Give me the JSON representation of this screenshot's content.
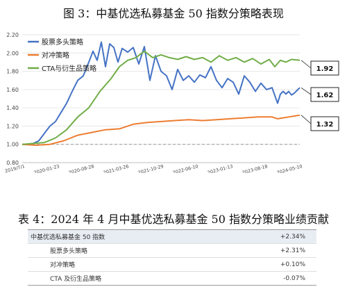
{
  "figure_title": "图 3：中基优选私募基金 50 指数分策略表现",
  "chart_data": {
    "type": "line",
    "ylim": [
      0.8,
      2.2
    ],
    "y_ticks": [
      "0.80",
      "1.00",
      "1.20",
      "1.40",
      "1.60",
      "1.80",
      "2.00",
      "2.20"
    ],
    "x_ticks": [
      "2019/7/1",
      "2020-01-23",
      "2020-08-28",
      "2021-03-26",
      "2021-10-29",
      "2022-06-10",
      "2023-01-13",
      "2023-08-18",
      "2024-05-10"
    ],
    "reference_line": 1.0,
    "legend_position": "top-left",
    "series": [
      {
        "name": "股票多头策略",
        "color": "#4472C4",
        "end_label": "1.62",
        "x": [
          0,
          2,
          4,
          6,
          8,
          10,
          12,
          14,
          16,
          18,
          20,
          22,
          24,
          25.5,
          27,
          28.5,
          30,
          31.5,
          33,
          34.5,
          36,
          38,
          40,
          42,
          44,
          46,
          48,
          50,
          52,
          54,
          56,
          58,
          60,
          62,
          64,
          66,
          68,
          70,
          72,
          74,
          76,
          78,
          80,
          82,
          84,
          86,
          88,
          90,
          92,
          93,
          94,
          95,
          96,
          97,
          98,
          100
        ],
        "values": [
          1.0,
          1.0,
          1.01,
          1.04,
          1.12,
          1.2,
          1.25,
          1.35,
          1.45,
          1.58,
          1.7,
          1.75,
          1.9,
          2.02,
          1.92,
          2.12,
          1.85,
          2.1,
          2.06,
          1.9,
          2.05,
          2.01,
          2.06,
          1.88,
          2.07,
          1.7,
          1.97,
          1.8,
          1.75,
          1.6,
          1.82,
          1.7,
          1.75,
          1.68,
          1.76,
          1.73,
          1.85,
          1.7,
          1.62,
          1.72,
          1.68,
          1.55,
          1.75,
          1.68,
          1.58,
          1.67,
          1.6,
          1.62,
          1.45,
          1.55,
          1.58,
          1.55,
          1.58,
          1.54,
          1.56,
          1.62
        ]
      },
      {
        "name": "对冲策略",
        "color": "#ED7D31",
        "end_label": "1.32",
        "x": [
          0,
          5,
          10,
          15,
          20,
          25,
          30,
          35,
          40,
          45,
          50,
          55,
          60,
          65,
          70,
          75,
          80,
          85,
          90,
          92,
          94,
          96,
          98,
          100
        ],
        "values": [
          1.0,
          0.99,
          1.0,
          1.04,
          1.1,
          1.13,
          1.16,
          1.17,
          1.22,
          1.24,
          1.25,
          1.26,
          1.27,
          1.26,
          1.27,
          1.28,
          1.29,
          1.3,
          1.3,
          1.28,
          1.29,
          1.3,
          1.31,
          1.32
        ]
      },
      {
        "name": "CTA与衍生品策略",
        "color": "#70AD47",
        "end_label": "1.92",
        "x": [
          0,
          4,
          8,
          12,
          16,
          20,
          24,
          28,
          32,
          35,
          38,
          41,
          44,
          47,
          50,
          53,
          56,
          59,
          62,
          65,
          68,
          71,
          74,
          77,
          80,
          83,
          86,
          89,
          91,
          93,
          95,
          97,
          100
        ],
        "values": [
          1.0,
          1.01,
          1.02,
          1.07,
          1.16,
          1.3,
          1.4,
          1.58,
          1.72,
          1.85,
          1.92,
          1.95,
          2.02,
          1.95,
          1.98,
          1.95,
          1.93,
          1.96,
          1.93,
          1.95,
          1.9,
          1.97,
          1.92,
          1.95,
          1.9,
          1.94,
          1.88,
          1.93,
          1.85,
          1.92,
          1.9,
          1.93,
          1.92
        ]
      }
    ]
  },
  "table": {
    "title": "表 4：2024 年 4 月中基优选私募基金 50 指数分策略业绩贡献",
    "rows": [
      {
        "label": "中基优选私募基金 50 指数",
        "value": "+2.34%"
      },
      {
        "label": "股票多头策略",
        "value": "+2.31%"
      },
      {
        "label": "对冲策略",
        "value": "+0.10%"
      },
      {
        "label": "CTA 及衍生品策略",
        "value": "-0.07%"
      }
    ]
  }
}
